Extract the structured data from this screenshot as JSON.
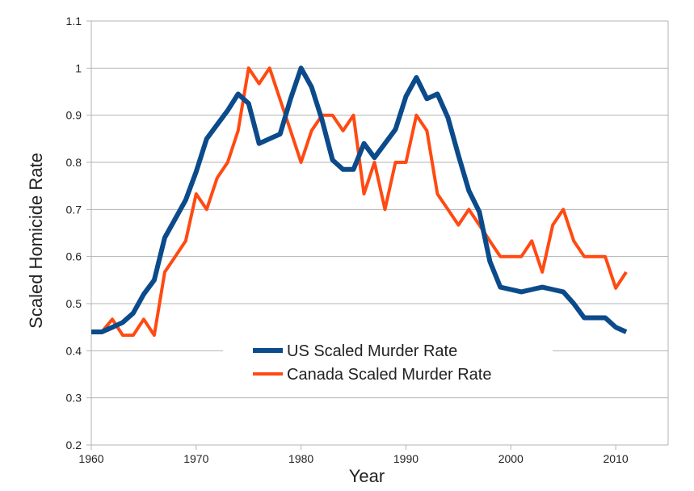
{
  "chart_data": {
    "type": "line",
    "title": "",
    "xlabel": "Year",
    "ylabel": "Scaled Homicide Rate",
    "xlim": [
      1960,
      2015
    ],
    "ylim": [
      0.2,
      1.1
    ],
    "x_ticks": [
      "1960",
      "1970",
      "1980",
      "1990",
      "2000",
      "2010"
    ],
    "y_ticks": [
      "0.2",
      "0.3",
      "0.4",
      "0.5",
      "0.6",
      "0.7",
      "0.8",
      "0.9",
      "1",
      "1.1"
    ],
    "grid": true,
    "legend_position": "bottom-center",
    "x": [
      1960,
      1961,
      1962,
      1963,
      1964,
      1965,
      1966,
      1967,
      1968,
      1969,
      1970,
      1971,
      1972,
      1973,
      1974,
      1975,
      1976,
      1977,
      1978,
      1979,
      1980,
      1981,
      1982,
      1983,
      1984,
      1985,
      1986,
      1987,
      1988,
      1989,
      1990,
      1991,
      1992,
      1993,
      1994,
      1995,
      1996,
      1997,
      1998,
      1999,
      2000,
      2001,
      2002,
      2003,
      2004,
      2005,
      2006,
      2007,
      2008,
      2009,
      2010,
      2011
    ],
    "series": [
      {
        "name": "US Scaled Murder Rate",
        "color": "#0b4a8b",
        "values": [
          0.44,
          0.44,
          0.45,
          0.46,
          0.48,
          0.52,
          0.55,
          0.64,
          0.68,
          0.72,
          0.78,
          0.85,
          0.88,
          0.91,
          0.945,
          0.925,
          0.84,
          0.85,
          0.86,
          0.935,
          1.0,
          0.96,
          0.89,
          0.805,
          0.785,
          0.785,
          0.84,
          0.81,
          0.84,
          0.87,
          0.94,
          0.98,
          0.935,
          0.945,
          0.895,
          0.815,
          0.74,
          0.695,
          0.59,
          0.535,
          0.53,
          0.525,
          0.53,
          0.535,
          0.53,
          0.525,
          0.5,
          0.47,
          0.47,
          0.47,
          0.45,
          0.44
        ]
      },
      {
        "name": "Canada Scaled Murder Rate",
        "color": "#ff4a12",
        "values": [
          0.44,
          0.44,
          0.467,
          0.433,
          0.433,
          0.467,
          0.433,
          0.567,
          0.6,
          0.633,
          0.733,
          0.7,
          0.767,
          0.8,
          0.867,
          1.0,
          0.967,
          1.0,
          0.933,
          0.867,
          0.8,
          0.867,
          0.9,
          0.9,
          0.867,
          0.9,
          0.733,
          0.8,
          0.7,
          0.8,
          0.8,
          0.9,
          0.867,
          0.733,
          0.7,
          0.667,
          0.7,
          0.667,
          0.633,
          0.6,
          0.6,
          0.6,
          0.633,
          0.567,
          0.667,
          0.7,
          0.633,
          0.6,
          0.6,
          0.6,
          0.533,
          0.567
        ]
      }
    ]
  }
}
